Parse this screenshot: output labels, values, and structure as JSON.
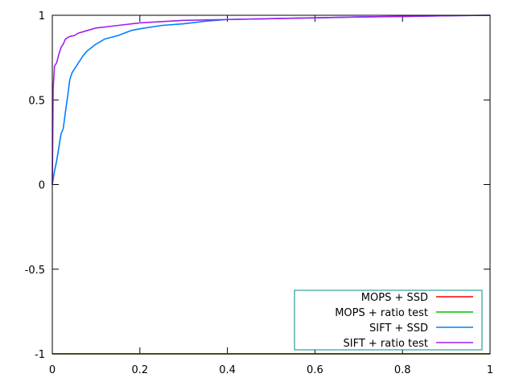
{
  "chart_data": {
    "type": "line",
    "title": "",
    "xlabel": "",
    "ylabel": "",
    "xlim": [
      0,
      1
    ],
    "ylim": [
      -1,
      1
    ],
    "x_ticks": [
      "0",
      "0.2",
      "0.4",
      "0.6",
      "0.8",
      "1"
    ],
    "y_ticks": [
      "1",
      "0.5",
      "0",
      "-0.5",
      "-1"
    ],
    "grid": false,
    "legend_position": "bottom-right",
    "series": [
      {
        "name": "MOPS + SSD",
        "color": "#ff0000",
        "points": [
          [
            0,
            -1
          ],
          [
            1,
            -1
          ]
        ]
      },
      {
        "name": "MOPS + ratio test",
        "color": "#00c000",
        "points": [
          [
            0,
            -1
          ],
          [
            1,
            -1
          ]
        ]
      },
      {
        "name": "SIFT + SSD",
        "color": "#0080ff",
        "points": [
          [
            0,
            0
          ],
          [
            0.005,
            0.08
          ],
          [
            0.01,
            0.14
          ],
          [
            0.015,
            0.22
          ],
          [
            0.02,
            0.3
          ],
          [
            0.025,
            0.33
          ],
          [
            0.03,
            0.43
          ],
          [
            0.035,
            0.52
          ],
          [
            0.04,
            0.62
          ],
          [
            0.045,
            0.66
          ],
          [
            0.05,
            0.68
          ],
          [
            0.06,
            0.72
          ],
          [
            0.07,
            0.76
          ],
          [
            0.08,
            0.79
          ],
          [
            0.09,
            0.81
          ],
          [
            0.1,
            0.83
          ],
          [
            0.12,
            0.86
          ],
          [
            0.15,
            0.88
          ],
          [
            0.18,
            0.91
          ],
          [
            0.2,
            0.92
          ],
          [
            0.25,
            0.94
          ],
          [
            0.3,
            0.95
          ],
          [
            0.35,
            0.965
          ],
          [
            0.4,
            0.975
          ],
          [
            0.5,
            0.98
          ],
          [
            0.6,
            0.985
          ],
          [
            0.7,
            0.99
          ],
          [
            0.8,
            0.993
          ],
          [
            0.9,
            0.997
          ],
          [
            1,
            1
          ]
        ]
      },
      {
        "name": "SIFT + ratio test",
        "color": "#a020f0",
        "points": [
          [
            0,
            0
          ],
          [
            0.002,
            0.57
          ],
          [
            0.005,
            0.7
          ],
          [
            0.01,
            0.72
          ],
          [
            0.015,
            0.77
          ],
          [
            0.02,
            0.81
          ],
          [
            0.025,
            0.83
          ],
          [
            0.03,
            0.86
          ],
          [
            0.04,
            0.875
          ],
          [
            0.05,
            0.88
          ],
          [
            0.06,
            0.895
          ],
          [
            0.08,
            0.91
          ],
          [
            0.1,
            0.925
          ],
          [
            0.15,
            0.94
          ],
          [
            0.2,
            0.955
          ],
          [
            0.3,
            0.97
          ],
          [
            0.4,
            0.975
          ],
          [
            0.5,
            0.98
          ],
          [
            0.6,
            0.985
          ],
          [
            0.7,
            0.99
          ],
          [
            0.8,
            0.993
          ],
          [
            0.9,
            0.997
          ],
          [
            1,
            1
          ]
        ]
      }
    ]
  }
}
